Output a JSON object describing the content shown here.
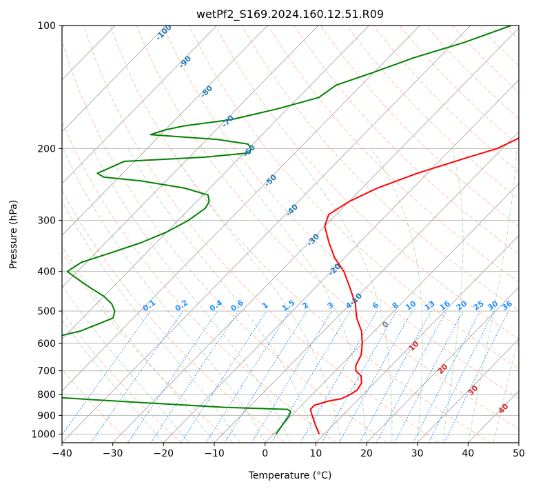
{
  "chart_data": {
    "type": "line",
    "subtype": "skew-t log-p diagram",
    "title": "wetPf2_S169.2024.160.12.51.R09",
    "xlabel": "Temperature (°C)",
    "ylabel": "Pressure (hPa)",
    "xlim": [
      -40,
      50
    ],
    "ylim": [
      1050,
      100
    ],
    "y_scale": "log",
    "grid": true,
    "x_ticks": [
      -40,
      -30,
      -20,
      -10,
      0,
      10,
      20,
      30,
      40,
      50
    ],
    "x_tick_labels": [
      "−40",
      "−30",
      "−20",
      "−10",
      "0",
      "10",
      "20",
      "30",
      "40",
      "50"
    ],
    "y_ticks": [
      100,
      200,
      300,
      400,
      500,
      600,
      700,
      800,
      900,
      1000
    ],
    "y_tick_labels": [
      "100",
      "200",
      "300",
      "400",
      "500",
      "600",
      "700",
      "800",
      "900",
      "1000"
    ],
    "series": [
      {
        "role": "temperature",
        "color": "#ff0000",
        "p": [
          1000,
          950,
          900,
          870,
          850,
          830,
          820,
          800,
          780,
          750,
          720,
          700,
          680,
          640,
          600,
          560,
          520,
          480,
          440,
          400,
          370,
          340,
          310,
          290,
          270,
          250,
          230,
          210,
          200,
          190,
          180,
          170,
          160,
          150,
          140,
          130,
          120,
          110,
          100
        ],
        "t": [
          9,
          6.5,
          4,
          2.5,
          2.5,
          4.5,
          6.5,
          7.5,
          8,
          7.5,
          6,
          4,
          3,
          2,
          0,
          -2.5,
          -6,
          -9,
          -13,
          -17.5,
          -22,
          -26,
          -30,
          -31.5,
          -30,
          -27,
          -22,
          -15,
          -11,
          -9,
          -8,
          -9,
          -10,
          -11,
          -12.5,
          -14,
          -16,
          -17.5,
          -19
        ]
      },
      {
        "role": "dewpoint",
        "color": "#008000",
        "p": [
          1000,
          950,
          900,
          880,
          870,
          860,
          840,
          820,
          800,
          790,
          780,
          760,
          750,
          740,
          720,
          700,
          680,
          660,
          640,
          620,
          600,
          580,
          560,
          540,
          520,
          500,
          480,
          460,
          440,
          420,
          400,
          380,
          360,
          340,
          320,
          300,
          280,
          270,
          260,
          250,
          240,
          235,
          230,
          215,
          210,
          205,
          200,
          195,
          190,
          185,
          180,
          176,
          170,
          160,
          150,
          140,
          130,
          120,
          110,
          100
        ],
        "td": [
          0.5,
          0,
          -0.5,
          -1,
          -2,
          -15,
          -30,
          -45,
          -59,
          -63,
          -64,
          -63,
          -75,
          -68,
          -58,
          -55,
          -57,
          -61,
          -60,
          -61,
          -63,
          -62,
          -58,
          -56,
          -54,
          -55,
          -57,
          -60,
          -64,
          -68,
          -72,
          -71,
          -67,
          -63,
          -60,
          -58,
          -57,
          -57.5,
          -59,
          -65,
          -75,
          -83,
          -85,
          -82,
          -67,
          -59,
          -59.5,
          -61,
          -68,
          -82,
          -80,
          -77,
          -69,
          -62,
          -56,
          -55,
          -50,
          -45,
          -38,
          -32
        ]
      }
    ],
    "dry_adiabat_labels": [
      "-100",
      "-90",
      "-80",
      "-70",
      "-60",
      "-50",
      "-40",
      "-30",
      "-20",
      "-10"
    ],
    "mixing_ratio_labels": [
      "0.1",
      "0.2",
      "0.4",
      "0.6",
      "1",
      "1.5",
      "2",
      "3",
      "4",
      "6",
      "8",
      "10",
      "13",
      "16",
      "20",
      "25",
      "30",
      "36"
    ],
    "moist_adiabat_labels": [
      "0",
      "10",
      "20",
      "30",
      "40"
    ],
    "colors": {
      "temperature": "#ff0000",
      "dewpoint": "#008000",
      "dry_adiabat_label": "#1f77b4",
      "mixing_ratio": "#1e90ff",
      "moist_adiabat_label": "#d62728",
      "moist_adiabat_zero_label": "#808080",
      "isotherm": "#a9a9a9",
      "isobar_grid": "#b0b0b0",
      "dry_adiabat_line": "#ffa07a",
      "moist_adiabat_line": "#8fbc8f"
    }
  }
}
